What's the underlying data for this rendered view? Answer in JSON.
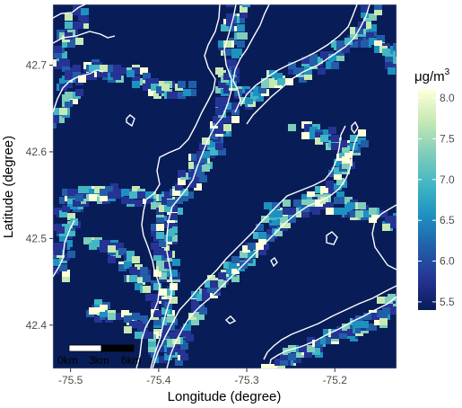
{
  "map": {
    "x_axis_title": "Longitude (degree)",
    "y_axis_title": "Latitude (degree)",
    "x_ticks": [
      {
        "value": -75.5,
        "label": "-75.5"
      },
      {
        "value": -75.4,
        "label": "-75.4"
      },
      {
        "value": -75.3,
        "label": "-75.3"
      },
      {
        "value": -75.2,
        "label": "-75.2"
      }
    ],
    "y_ticks": [
      {
        "value": 42.4,
        "label": "42.4"
      },
      {
        "value": 42.5,
        "label": "42.5"
      },
      {
        "value": 42.6,
        "label": "42.6"
      },
      {
        "value": 42.7,
        "label": "42.7"
      }
    ],
    "lon_range": [
      -75.52,
      -75.13
    ],
    "lat_range": [
      42.35,
      42.77
    ],
    "background_color": "#081d58",
    "contour_color": "#ffffff",
    "scale_bar": {
      "labels": [
        "0km",
        "3km",
        "6km"
      ]
    }
  },
  "legend": {
    "title_prefix": "μg/m",
    "title_superscript": "3",
    "ticks": [
      {
        "value": 8.0,
        "label": "8.0"
      },
      {
        "value": 7.5,
        "label": "7.5"
      },
      {
        "value": 7.0,
        "label": "7.0"
      },
      {
        "value": 6.5,
        "label": "6.5"
      },
      {
        "value": 6.0,
        "label": "6.0"
      },
      {
        "value": 5.5,
        "label": "5.5"
      }
    ],
    "range": [
      5.4,
      8.1
    ],
    "colors": [
      "#081d58",
      "#253494",
      "#225ea8",
      "#1d91c0",
      "#41b6c4",
      "#7fcdbb",
      "#c7e9b4",
      "#ffffd9"
    ]
  }
}
